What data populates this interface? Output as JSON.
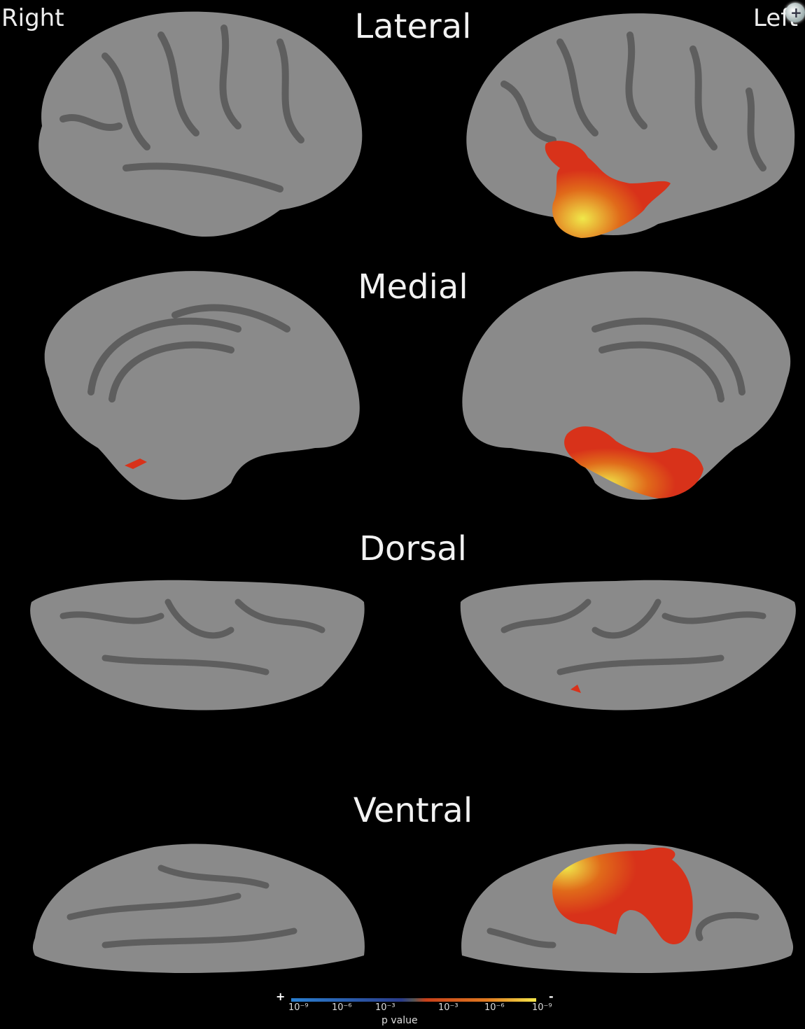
{
  "hemispheres": {
    "right": "Right",
    "left": "Left"
  },
  "views": [
    "Lateral",
    "Medial",
    "Dorsal",
    "Ventral"
  ],
  "colorbar": {
    "minus_sign": "+",
    "plus_sign": "-",
    "ticks": [
      "10⁻⁹",
      "10⁻⁶",
      "10⁻³",
      "10⁻³",
      "10⁻⁶",
      "10⁻⁹"
    ],
    "label": "p value"
  },
  "colors": {
    "background": "#000000",
    "cortex": "#8a8a8a",
    "sulci": "#5e5e5e",
    "activation_red": "#d8321a",
    "activation_yellow": "#f0e84a"
  }
}
